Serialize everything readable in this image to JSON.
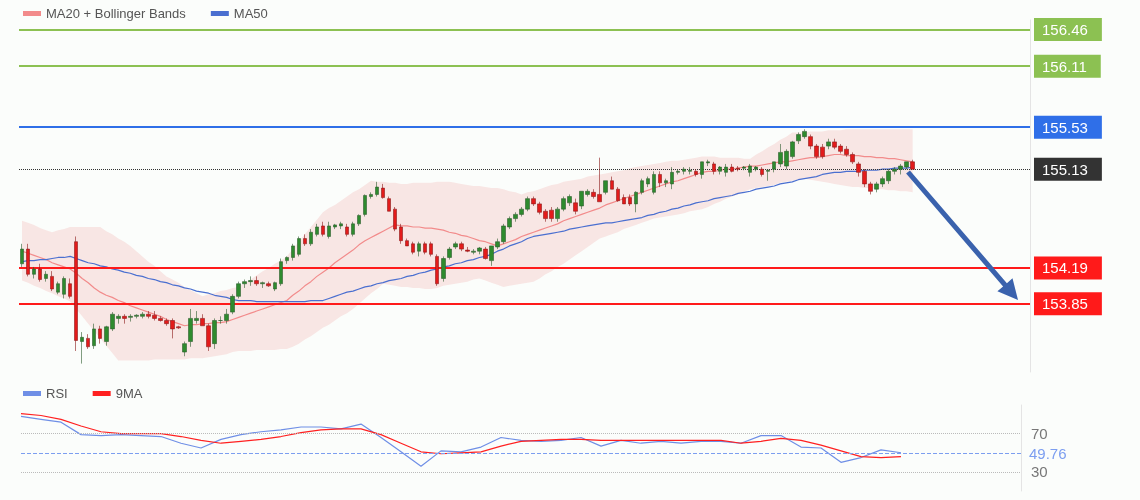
{
  "chart_data": [
    {
      "type": "candlestick",
      "legend": "top left",
      "categories": [
        null,
        null,
        null,
        null,
        null,
        null,
        null,
        null,
        null,
        null,
        null,
        null,
        null,
        null,
        null,
        null,
        null,
        null,
        null,
        null,
        null,
        null,
        null,
        null,
        null,
        null,
        null,
        null,
        null,
        null,
        null,
        null,
        null,
        null,
        null,
        null,
        null,
        null,
        null,
        null,
        null,
        null,
        null,
        null,
        null,
        null,
        null,
        null,
        null,
        null,
        null,
        null,
        null,
        null,
        null,
        null,
        null,
        null,
        null,
        null,
        null,
        null,
        null,
        null,
        null,
        null,
        null,
        null,
        null,
        null,
        null,
        null,
        null,
        null,
        null,
        null,
        null,
        null,
        null,
        null,
        null,
        null,
        null,
        null,
        null,
        null,
        null,
        null,
        null,
        null,
        null,
        null,
        null,
        null,
        null,
        null,
        null,
        null,
        null,
        null,
        null,
        null,
        null,
        null,
        null,
        null,
        null,
        null,
        null,
        null,
        null,
        null,
        null,
        null,
        null,
        null,
        null,
        null,
        null,
        null,
        null,
        null,
        null,
        null,
        null,
        null,
        null,
        null,
        null,
        null,
        null,
        null,
        null,
        null,
        null,
        null,
        null,
        null,
        null,
        null,
        null,
        null,
        null,
        null,
        null,
        null,
        null,
        null,
        null
      ],
      "ohlc": [
        [
          154.23,
          154.42,
          154.2,
          154.37
        ],
        [
          154.37,
          154.42,
          154.11,
          154.13
        ],
        [
          154.13,
          154.2,
          154.09,
          154.18
        ],
        [
          154.18,
          154.23,
          154.06,
          154.08
        ],
        [
          154.09,
          154.16,
          154.06,
          154.13
        ],
        [
          154.11,
          154.16,
          153.97,
          153.99
        ],
        [
          153.96,
          154.06,
          153.94,
          154.04
        ],
        [
          153.94,
          154.11,
          153.9,
          154.09
        ],
        [
          154.04,
          154.09,
          153.9,
          153.92
        ],
        [
          154.44,
          154.49,
          153.4,
          153.5
        ],
        [
          153.49,
          153.58,
          153.28,
          153.53
        ],
        [
          153.52,
          153.56,
          153.42,
          153.44
        ],
        [
          153.45,
          153.66,
          153.42,
          153.61
        ],
        [
          153.61,
          153.64,
          153.47,
          153.52
        ],
        [
          153.49,
          153.64,
          153.45,
          153.63
        ],
        [
          153.61,
          153.77,
          153.59,
          153.75
        ],
        [
          153.71,
          153.75,
          153.66,
          153.73
        ],
        [
          153.73,
          153.75,
          153.66,
          153.71
        ],
        [
          153.72,
          153.75,
          153.68,
          153.73
        ],
        [
          153.73,
          153.75,
          153.71,
          153.74
        ],
        [
          153.73,
          153.77,
          153.71,
          153.75
        ],
        [
          153.75,
          153.78,
          153.71,
          153.73
        ],
        [
          153.74,
          153.78,
          153.69,
          153.71
        ],
        [
          153.71,
          153.73,
          153.68,
          153.69
        ],
        [
          153.69,
          153.71,
          153.64,
          153.66
        ],
        [
          153.69,
          153.71,
          153.52,
          153.61
        ],
        [
          153.63,
          153.64,
          153.61,
          153.62
        ],
        [
          153.39,
          153.49,
          153.35,
          153.47
        ],
        [
          153.49,
          153.8,
          153.44,
          153.71
        ],
        [
          153.69,
          153.78,
          153.66,
          153.71
        ],
        [
          153.71,
          153.75,
          153.64,
          153.64
        ],
        [
          153.64,
          153.66,
          153.4,
          153.44
        ],
        [
          153.47,
          153.71,
          153.42,
          153.69
        ],
        [
          153.69,
          153.73,
          153.66,
          153.69
        ],
        [
          153.69,
          153.8,
          153.66,
          153.75
        ],
        [
          153.77,
          153.94,
          153.75,
          153.92
        ],
        [
          153.92,
          154.06,
          153.9,
          154.04
        ],
        [
          154.04,
          154.08,
          154.0,
          154.06
        ],
        [
          154.06,
          154.11,
          154.02,
          154.07
        ],
        [
          154.07,
          154.11,
          154.02,
          154.04
        ],
        [
          154.04,
          154.06,
          154.0,
          154.05
        ],
        [
          154.04,
          154.06,
          154.01,
          154.02
        ],
        [
          153.99,
          154.06,
          153.97,
          154.05
        ],
        [
          154.04,
          154.28,
          154.02,
          154.25
        ],
        [
          154.26,
          154.3,
          154.23,
          154.29
        ],
        [
          154.29,
          154.42,
          154.26,
          154.4
        ],
        [
          154.32,
          154.49,
          154.3,
          154.47
        ],
        [
          154.47,
          154.51,
          154.4,
          154.42
        ],
        [
          154.42,
          154.56,
          154.4,
          154.53
        ],
        [
          154.51,
          154.61,
          154.49,
          154.58
        ],
        [
          154.59,
          154.63,
          154.49,
          154.51
        ],
        [
          154.49,
          154.63,
          154.47,
          154.59
        ],
        [
          154.58,
          154.61,
          154.56,
          154.6
        ],
        [
          154.59,
          154.63,
          154.56,
          154.61
        ],
        [
          154.58,
          154.61,
          154.49,
          154.51
        ],
        [
          154.51,
          154.63,
          154.49,
          154.61
        ],
        [
          154.61,
          154.7,
          154.59,
          154.69
        ],
        [
          154.7,
          154.89,
          154.68,
          154.88
        ],
        [
          154.87,
          154.91,
          154.85,
          154.89
        ],
        [
          154.89,
          155.01,
          154.87,
          154.96
        ],
        [
          154.95,
          154.99,
          154.85,
          154.86
        ],
        [
          154.85,
          154.87,
          154.73,
          154.73
        ],
        [
          154.75,
          154.77,
          154.54,
          154.56
        ],
        [
          154.58,
          154.61,
          154.42,
          154.45
        ],
        [
          154.45,
          154.47,
          154.4,
          154.4
        ],
        [
          154.42,
          154.44,
          154.32,
          154.34
        ],
        [
          154.35,
          154.44,
          154.3,
          154.42
        ],
        [
          154.42,
          154.44,
          154.32,
          154.34
        ],
        [
          154.42,
          154.44,
          154.3,
          154.32
        ],
        [
          154.3,
          154.32,
          154.02,
          154.04
        ],
        [
          154.09,
          154.3,
          154.06,
          154.28
        ],
        [
          154.29,
          154.39,
          154.27,
          154.37
        ],
        [
          154.39,
          154.44,
          154.37,
          154.42
        ],
        [
          154.42,
          154.44,
          154.35,
          154.37
        ],
        [
          154.36,
          154.39,
          154.34,
          154.35
        ],
        [
          154.34,
          154.37,
          154.32,
          154.35
        ],
        [
          154.35,
          154.39,
          154.32,
          154.38
        ],
        [
          154.37,
          154.39,
          154.27,
          154.28
        ],
        [
          154.26,
          154.4,
          154.21,
          154.4
        ],
        [
          154.39,
          154.47,
          154.37,
          154.44
        ],
        [
          154.44,
          154.61,
          154.42,
          154.59
        ],
        [
          154.58,
          154.68,
          154.56,
          154.66
        ],
        [
          154.66,
          154.72,
          154.63,
          154.7
        ],
        [
          154.7,
          154.77,
          154.68,
          154.75
        ],
        [
          154.75,
          154.87,
          154.73,
          154.85
        ],
        [
          154.85,
          154.87,
          154.78,
          154.8
        ],
        [
          154.8,
          154.82,
          154.7,
          154.72
        ],
        [
          154.73,
          154.75,
          154.63,
          154.66
        ],
        [
          154.74,
          154.77,
          154.63,
          154.66
        ],
        [
          154.66,
          154.77,
          154.63,
          154.75
        ],
        [
          154.75,
          154.87,
          154.73,
          154.85
        ],
        [
          154.81,
          154.89,
          154.78,
          154.87
        ],
        [
          154.81,
          154.85,
          154.7,
          154.73
        ],
        [
          154.78,
          154.92,
          154.75,
          154.92
        ],
        [
          154.89,
          154.94,
          154.87,
          154.92
        ],
        [
          154.91,
          154.94,
          154.85,
          154.87
        ],
        [
          154.89,
          155.24,
          154.82,
          154.82
        ],
        [
          154.91,
          155.02,
          154.89,
          155.02
        ],
        [
          155.02,
          155.06,
          154.94,
          154.94
        ],
        [
          154.94,
          154.96,
          154.82,
          154.83
        ],
        [
          154.86,
          154.89,
          154.8,
          154.8
        ],
        [
          154.86,
          154.89,
          154.78,
          154.8
        ],
        [
          154.8,
          154.92,
          154.72,
          154.91
        ],
        [
          154.91,
          155.04,
          154.89,
          155.02
        ],
        [
          154.99,
          155.06,
          154.96,
          155.04
        ],
        [
          154.91,
          155.11,
          154.89,
          155.08
        ],
        [
          155.08,
          155.11,
          154.96,
          155.0
        ],
        [
          155.0,
          155.04,
          154.96,
          155.02
        ],
        [
          154.99,
          155.15,
          154.94,
          155.1
        ],
        [
          155.1,
          155.13,
          155.08,
          155.11
        ],
        [
          155.11,
          155.15,
          155.08,
          155.13
        ],
        [
          155.11,
          155.15,
          155.08,
          155.12
        ],
        [
          155.11,
          155.13,
          155.06,
          155.08
        ],
        [
          155.08,
          155.2,
          155.04,
          155.2
        ],
        [
          155.19,
          155.22,
          155.16,
          155.2
        ],
        [
          155.18,
          155.2,
          155.08,
          155.11
        ],
        [
          155.11,
          155.16,
          155.08,
          155.15
        ],
        [
          155.1,
          155.18,
          155.06,
          155.15
        ],
        [
          155.15,
          155.18,
          155.1,
          155.11
        ],
        [
          155.14,
          155.16,
          155.11,
          155.13
        ],
        [
          155.14,
          155.16,
          155.12,
          155.15
        ],
        [
          155.1,
          155.18,
          155.06,
          155.16
        ],
        [
          155.13,
          155.16,
          155.11,
          155.15
        ],
        [
          155.13,
          155.15,
          155.06,
          155.08
        ],
        [
          155.11,
          155.13,
          155.02,
          155.12
        ],
        [
          155.13,
          155.2,
          155.1,
          155.2
        ],
        [
          155.18,
          155.37,
          155.15,
          155.29
        ],
        [
          155.16,
          155.32,
          155.13,
          155.3
        ],
        [
          155.25,
          155.4,
          155.23,
          155.39
        ],
        [
          155.4,
          155.48,
          155.37,
          155.46
        ],
        [
          155.44,
          155.51,
          155.42,
          155.49
        ],
        [
          155.44,
          155.46,
          155.32,
          155.35
        ],
        [
          155.35,
          155.37,
          155.23,
          155.25
        ],
        [
          155.34,
          155.37,
          155.23,
          155.25
        ],
        [
          155.35,
          155.42,
          155.32,
          155.39
        ],
        [
          155.39,
          155.42,
          155.32,
          155.34
        ],
        [
          155.35,
          155.37,
          155.28,
          155.3
        ],
        [
          155.32,
          155.35,
          155.25,
          155.27
        ],
        [
          155.27,
          155.29,
          155.18,
          155.2
        ],
        [
          155.18,
          155.2,
          155.06,
          155.1
        ],
        [
          155.11,
          155.13,
          154.96,
          154.99
        ],
        [
          154.99,
          155.01,
          154.89,
          154.92
        ],
        [
          154.94,
          155.01,
          154.91,
          154.99
        ],
        [
          154.99,
          155.06,
          154.96,
          155.04
        ],
        [
          155.02,
          155.13,
          154.99,
          155.11
        ],
        [
          155.11,
          155.15,
          155.08,
          155.13
        ],
        [
          155.13,
          155.18,
          155.08,
          155.16
        ],
        [
          155.15,
          155.2,
          155.13,
          155.2
        ],
        [
          155.2,
          155.22,
          155.13,
          155.13
        ]
      ],
      "series": [
        {
          "type": "line",
          "name": "MA20 + Bollinger Bands",
          "color": "#f28b8b",
          "values": [
            154.35,
            154.33,
            154.31,
            154.29,
            154.27,
            154.24,
            154.22,
            154.2,
            154.18,
            154.14,
            154.09,
            154.05,
            154.0,
            153.96,
            153.93,
            153.91,
            153.88,
            153.86,
            153.83,
            153.81,
            153.79,
            153.77,
            153.75,
            153.73,
            153.7,
            153.68,
            153.66,
            153.64,
            153.65,
            153.65,
            153.66,
            153.66,
            153.67,
            153.67,
            153.68,
            153.7,
            153.72,
            153.74,
            153.76,
            153.78,
            153.8,
            153.82,
            153.84,
            153.86,
            153.88,
            153.93,
            153.97,
            154.02,
            154.06,
            154.11,
            154.15,
            154.19,
            154.24,
            154.28,
            154.32,
            154.36,
            154.41,
            154.45,
            154.48,
            154.51,
            154.54,
            154.57,
            154.6,
            154.59,
            154.59,
            154.58,
            154.58,
            154.57,
            154.57,
            154.56,
            154.55,
            154.53,
            154.52,
            154.5,
            154.49,
            154.47,
            154.45,
            154.44,
            154.42,
            154.4,
            154.42,
            154.44,
            154.46,
            154.49,
            154.51,
            154.53,
            154.55,
            154.57,
            154.59,
            154.61,
            154.64,
            154.66,
            154.68,
            154.7,
            154.72,
            154.74,
            154.76,
            154.79,
            154.81,
            154.83,
            154.85,
            154.87,
            154.89,
            154.91,
            154.93,
            154.95,
            154.97,
            154.99,
            155.01,
            155.02,
            155.04,
            155.06,
            155.08,
            155.1,
            155.11,
            155.11,
            155.12,
            155.13,
            155.13,
            155.14,
            155.15,
            155.16,
            155.16,
            155.17,
            155.18,
            155.19,
            155.2,
            155.2,
            155.21,
            155.22,
            155.23,
            155.24,
            155.24,
            155.25,
            155.26,
            155.27,
            155.27,
            155.26,
            155.26,
            155.26,
            155.25,
            155.25,
            155.24,
            155.24,
            155.23,
            155.23,
            155.22,
            155.21,
            155.2
          ],
          "upper": [
            154.64,
            154.62,
            154.6,
            154.57,
            154.55,
            154.53,
            154.55,
            154.56,
            154.58,
            154.58,
            154.58,
            154.58,
            154.58,
            154.58,
            154.54,
            154.51,
            154.47,
            154.44,
            154.4,
            154.35,
            154.3,
            154.25,
            154.21,
            154.16,
            154.11,
            154.08,
            154.05,
            154.01,
            153.98,
            153.95,
            153.92,
            153.94,
            153.95,
            153.97,
            153.98,
            154.0,
            154.01,
            154.05,
            154.08,
            154.12,
            154.16,
            154.19,
            154.23,
            154.26,
            154.3,
            154.37,
            154.44,
            154.51,
            154.58,
            154.65,
            154.72,
            154.76,
            154.79,
            154.83,
            154.87,
            154.91,
            154.94,
            154.98,
            155.02,
            155.01,
            155.01,
            155.0,
            155.0,
            154.99,
            154.99,
            155.0,
            155.0,
            155.0,
            155.0,
            155.01,
            155.01,
            155.01,
            155.0,
            154.99,
            154.98,
            154.97,
            154.97,
            154.96,
            154.95,
            154.95,
            154.94,
            154.92,
            154.91,
            154.89,
            154.91,
            154.92,
            154.94,
            154.96,
            154.98,
            154.99,
            155.01,
            155.02,
            155.03,
            155.04,
            155.06,
            155.07,
            155.08,
            155.09,
            155.1,
            155.11,
            155.12,
            155.14,
            155.15,
            155.16,
            155.17,
            155.18,
            155.19,
            155.2,
            155.21,
            155.21,
            155.22,
            155.23,
            155.24,
            155.25,
            155.25,
            155.25,
            155.24,
            155.24,
            155.24,
            155.24,
            155.23,
            155.23,
            155.27,
            155.3,
            155.34,
            155.37,
            155.41,
            155.44,
            155.48,
            155.48,
            155.48,
            155.49,
            155.49,
            155.49,
            155.5,
            155.5,
            155.5,
            155.51,
            155.51,
            155.51,
            155.51,
            155.51,
            155.51,
            155.51,
            155.51,
            155.51,
            155.51,
            155.51,
            155.51
          ],
          "lower": [
            154.07,
            154.05,
            154.02,
            154.0,
            153.97,
            153.95,
            153.92,
            153.9,
            153.87,
            153.8,
            153.73,
            153.66,
            153.59,
            153.52,
            153.45,
            153.38,
            153.31,
            153.31,
            153.31,
            153.31,
            153.31,
            153.31,
            153.32,
            153.32,
            153.32,
            153.32,
            153.32,
            153.32,
            153.33,
            153.33,
            153.33,
            153.34,
            153.35,
            153.36,
            153.37,
            153.39,
            153.4,
            153.4,
            153.4,
            153.41,
            153.41,
            153.41,
            153.41,
            153.42,
            153.42,
            153.44,
            153.47,
            153.51,
            153.54,
            153.58,
            153.62,
            153.65,
            153.69,
            153.73,
            153.76,
            153.8,
            153.85,
            153.9,
            153.95,
            153.99,
            154.04,
            154.03,
            154.02,
            154.01,
            154.01,
            154.0,
            154.0,
            153.99,
            153.99,
            154.0,
            154.02,
            154.03,
            154.04,
            154.05,
            154.06,
            154.08,
            154.09,
            154.07,
            154.05,
            154.03,
            154.01,
            154.02,
            154.03,
            154.04,
            154.05,
            154.06,
            154.09,
            154.13,
            154.16,
            154.2,
            154.23,
            154.27,
            154.31,
            154.35,
            154.39,
            154.43,
            154.47,
            154.49,
            154.51,
            154.53,
            154.56,
            154.58,
            154.6,
            154.62,
            154.64,
            154.66,
            154.67,
            154.68,
            154.69,
            154.7,
            154.71,
            154.73,
            154.74,
            154.75,
            154.77,
            154.8,
            154.82,
            154.85,
            154.87,
            154.89,
            154.92,
            154.94,
            154.95,
            154.96,
            154.97,
            154.98,
            155.0,
            155.01,
            155.02,
            155.03,
            155.04,
            155.03,
            155.02,
            155.01,
            155.0,
            154.99,
            154.98,
            154.97,
            154.96,
            154.96,
            154.95,
            154.95,
            154.94,
            154.94,
            154.93,
            154.93,
            154.92,
            154.92,
            154.91
          ]
        },
        {
          "type": "line",
          "name": "MA50",
          "color": "#4a6fd0",
          "values": [
            154.25,
            154.26,
            154.26,
            154.27,
            154.27,
            154.28,
            154.29,
            154.29,
            154.3,
            154.28,
            154.26,
            154.24,
            154.23,
            154.21,
            154.2,
            154.18,
            154.17,
            154.15,
            154.14,
            154.12,
            154.11,
            154.09,
            154.08,
            154.06,
            154.05,
            154.03,
            154.02,
            154.0,
            153.99,
            153.97,
            153.96,
            153.95,
            153.93,
            153.92,
            153.91,
            153.89,
            153.88,
            153.88,
            153.88,
            153.87,
            153.87,
            153.87,
            153.87,
            153.87,
            153.87,
            153.87,
            153.87,
            153.87,
            153.88,
            153.88,
            153.88,
            153.9,
            153.92,
            153.94,
            153.96,
            153.97,
            153.99,
            154.01,
            154.02,
            154.04,
            154.05,
            154.07,
            154.08,
            154.09,
            154.11,
            154.12,
            154.14,
            154.15,
            154.17,
            154.18,
            154.2,
            154.21,
            154.23,
            154.24,
            154.26,
            154.27,
            154.29,
            154.3,
            154.32,
            154.35,
            154.37,
            154.4,
            154.42,
            154.44,
            154.47,
            154.49,
            154.5,
            154.51,
            154.52,
            154.53,
            154.54,
            154.56,
            154.57,
            154.58,
            154.59,
            154.6,
            154.61,
            154.62,
            154.62,
            154.63,
            154.64,
            154.65,
            154.66,
            154.67,
            154.69,
            154.7,
            154.72,
            154.73,
            154.75,
            154.76,
            154.78,
            154.79,
            154.81,
            154.82,
            154.83,
            154.85,
            154.86,
            154.87,
            154.88,
            154.9,
            154.91,
            154.92,
            154.94,
            154.95,
            154.96,
            154.97,
            154.99,
            155.0,
            155.01,
            155.03,
            155.04,
            155.05,
            155.06,
            155.08,
            155.09,
            155.1,
            155.1,
            155.11,
            155.11,
            155.11,
            155.12,
            155.12,
            155.12,
            155.13,
            155.13,
            155.14,
            155.14,
            155.14,
            155.15
          ]
        }
      ],
      "ylim": [
        153.2,
        156.55
      ],
      "yticks": [
        153.85,
        154.19,
        155.13,
        155.53,
        156.11,
        156.46
      ],
      "ref_lines": [
        {
          "axis": "y",
          "value": 156.46,
          "color": "#8cc152"
        },
        {
          "axis": "y",
          "value": 156.11,
          "color": "#8cc152"
        },
        {
          "axis": "y",
          "value": 155.53,
          "color": "#2f6fe8"
        },
        {
          "axis": "y",
          "value": 155.13,
          "color": "#333333",
          "line_style": "dotted"
        },
        {
          "axis": "y",
          "value": 154.19,
          "color": "#ff1a1a"
        },
        {
          "axis": "y",
          "value": 153.85,
          "color": "#ff1a1a"
        }
      ]
    },
    {
      "type": "line",
      "legend": "top left",
      "categories": [
        null,
        null,
        null,
        null,
        null,
        null,
        null,
        null,
        null,
        null,
        null,
        null,
        null,
        null,
        null,
        null,
        null,
        null,
        null,
        null,
        null,
        null,
        null,
        null,
        null,
        null,
        null,
        null,
        null,
        null,
        null,
        null,
        null,
        null,
        null,
        null,
        null,
        null,
        null,
        null,
        null,
        null,
        null,
        null,
        null
      ],
      "series": [
        {
          "name": "RSI",
          "color": "#6f8fe6",
          "values": [
            88,
            85,
            82,
            69,
            68,
            69,
            68,
            67,
            60,
            55,
            64,
            69,
            72,
            74,
            77,
            77,
            75,
            80,
            66,
            51,
            36,
            52,
            51,
            56,
            66,
            63,
            62,
            63,
            66,
            57,
            63,
            60,
            62,
            60,
            62,
            62,
            60,
            68,
            68,
            56,
            55,
            40,
            45,
            53,
            50
          ]
        },
        {
          "name": "9MA",
          "color": "#ff2020",
          "values": [
            91,
            89,
            85,
            78,
            72,
            70,
            70,
            70,
            67,
            63,
            60,
            62,
            64,
            67,
            71,
            74,
            75,
            75,
            69,
            60,
            51,
            49,
            50,
            51,
            57,
            62,
            63,
            64,
            64,
            63,
            63,
            63,
            63,
            63,
            63,
            63,
            60,
            62,
            65,
            63,
            58,
            52,
            46,
            45,
            46
          ]
        }
      ],
      "ylim": [
        10,
        100
      ],
      "yticks": [
        30,
        70
      ],
      "ref_lines": [
        {
          "axis": "y",
          "value": 70,
          "color": "#bbbbbb",
          "line_style": "dotted"
        },
        {
          "axis": "y",
          "value": 49.76,
          "label": "49.76",
          "color": "#7c9ef0",
          "line_style": "dashed"
        },
        {
          "axis": "y",
          "value": 30,
          "color": "#bbbbbb",
          "line_style": "dotted"
        }
      ]
    }
  ]
}
